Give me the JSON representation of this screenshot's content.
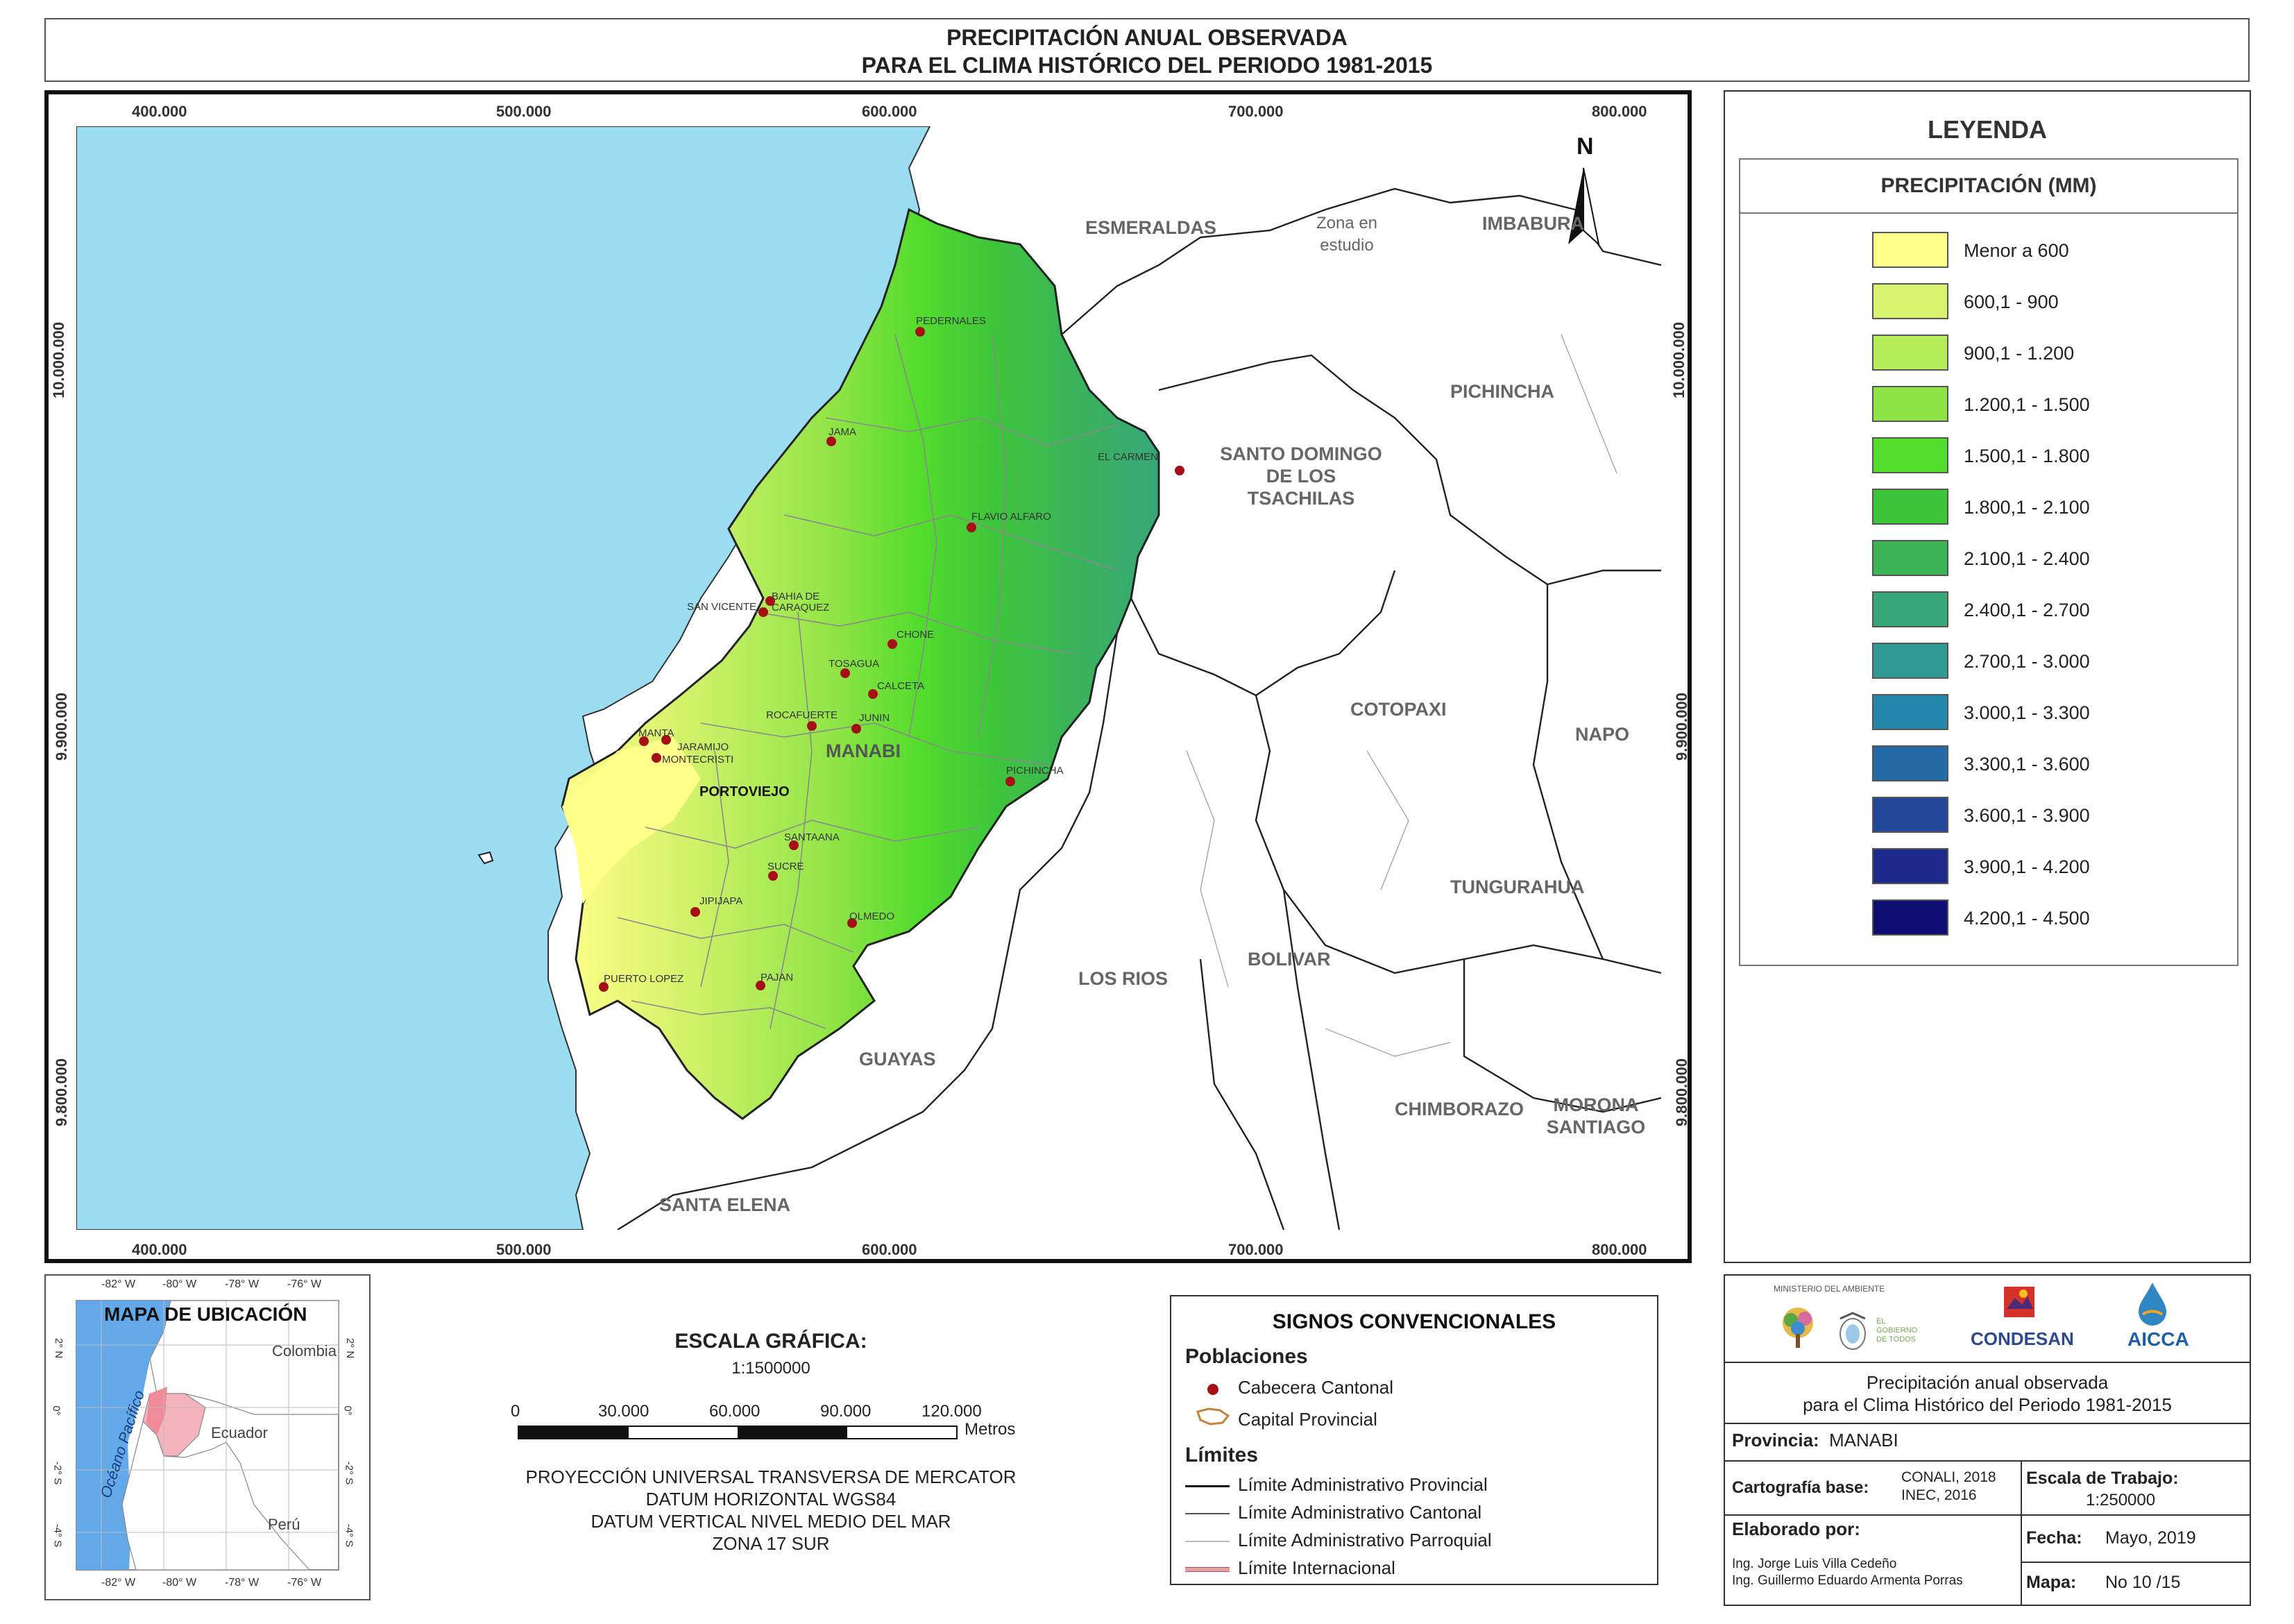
{
  "title": {
    "line1": "PRECIPITACIÓN ANUAL OBSERVADA",
    "line2": "PARA EL CLIMA HISTÓRICO DEL PERIODO 1981-2015"
  },
  "map": {
    "x_ticks": [
      "400.000",
      "500.000",
      "600.000",
      "700.000",
      "800.000"
    ],
    "y_ticks": [
      "10.000.000",
      "9.900.000",
      "9.800.000"
    ],
    "north_label": "N",
    "provinces": [
      "ESMERALDAS",
      "Zona en estudio",
      "IMBABURA",
      "PICHINCHA",
      "SANTO DOMINGO DE LOS TSACHILAS",
      "COTOPAXI",
      "NAPO",
      "TUNGURAHUA",
      "BOLIVAR",
      "LOS RIOS",
      "CHIMBORAZO",
      "MORONA SANTIAGO",
      "GUAYAS",
      "SANTA ELENA",
      "MANABI"
    ],
    "cities": [
      "PEDERNALES",
      "JAMA",
      "EL CARMEN",
      "FLAVIO ALFARO",
      "BAHIA DE CARAQUEZ",
      "SAN VICENTE",
      "CHONE",
      "TOSAGUA",
      "CALCETA",
      "JUNIN",
      "ROCAFUERTE",
      "MANTA",
      "JARAMIJO",
      "MONTECRISTI",
      "PORTOVIEJO",
      "PICHINCHA",
      "SANTAANA",
      "SUCRE",
      "JIPIJAPA",
      "OLMEDO",
      "PUERTO LOPEZ",
      "PAJAN"
    ],
    "colors": {
      "ocean": "#9bdcf0",
      "land": "#ffffff"
    }
  },
  "legend": {
    "title": "LEYENDA",
    "subtitle": "PRECIPITACIÓN (MM)",
    "classes": [
      {
        "label": "Menor a 600",
        "color": "#ffff8a"
      },
      {
        "label": "600,1 - 900",
        "color": "#daf36e"
      },
      {
        "label": "900,1 - 1.200",
        "color": "#b4ec5a"
      },
      {
        "label": "1.200,1 - 1.500",
        "color": "#8fe445"
      },
      {
        "label": "1.500,1 - 1.800",
        "color": "#52dc2c"
      },
      {
        "label": "1.800,1 - 2.100",
        "color": "#3ec63a"
      },
      {
        "label": "2.100,1 - 2.400",
        "color": "#3bb556"
      },
      {
        "label": "2.400,1 - 2.700",
        "color": "#37a777"
      },
      {
        "label": "2.700,1 - 3.000",
        "color": "#2f9a94"
      },
      {
        "label": "3.000,1 - 3.300",
        "color": "#2487a9"
      },
      {
        "label": "3.300,1 - 3.600",
        "color": "#246aa6"
      },
      {
        "label": "3.600,1 - 3.900",
        "color": "#23489a"
      },
      {
        "label": "3.900,1 - 4.200",
        "color": "#1d2a8a"
      },
      {
        "label": "4.200,1 - 4.500",
        "color": "#0e0d70"
      }
    ]
  },
  "inset": {
    "title": "MAPA DE UBICACIÓN",
    "top_ticks": [
      "-82° W",
      "-80° W",
      "-78° W",
      "-76° W"
    ],
    "bottom_ticks": [
      "-82° W",
      "-80° W",
      "-78° W",
      "-76° W"
    ],
    "side_ticks": [
      "2° N",
      "0°",
      "-2° S",
      "-4° S"
    ],
    "countries": [
      "Colombia",
      "Ecuador",
      "Perú"
    ],
    "ocean": "Océano Pacífico"
  },
  "scale": {
    "title": "ESCALA GRÁFICA:",
    "ratio": "1:1500000",
    "ticks": [
      "0",
      "30.000",
      "60.000",
      "90.000",
      "120.000"
    ],
    "unit": "Metros",
    "projection": [
      "PROYECCIÓN UNIVERSAL TRANSVERSA DE MERCATOR",
      "DATUM HORIZONTAL WGS84",
      "DATUM VERTICAL NIVEL MEDIO DEL MAR",
      "ZONA 17 SUR"
    ]
  },
  "signs": {
    "title": "SIGNOS CONVENCIONALES",
    "poblaciones": "Poblaciones",
    "cabecera": "Cabecera Cantonal",
    "capital": "Capital Provincial",
    "limites": "Límites",
    "lim_prov": "Límite Administrativo Provincial",
    "lim_cant": "Límite Administrativo Cantonal",
    "lim_parr": "Límite Administrativo Parroquial",
    "lim_int": "Límite Internacional"
  },
  "info": {
    "logo1": "MINISTERIO DEL AMBIENTE",
    "logo2": "EL GOBIERNO DE TODOS",
    "logo3": "CONDESAN",
    "logo4": "AICCA",
    "desc1": "Precipitación anual observada",
    "desc2": "para el Clima Histórico del Periodo 1981-2015",
    "prov_label": "Provincia:",
    "prov_value": "MANABI",
    "carto_label": "Cartografía base:",
    "carto_value1": "CONALI, 2018",
    "carto_value2": "INEC, 2016",
    "escala_label": "Escala de Trabajo:",
    "escala_value": "1:250000",
    "elab_label": "Elaborado por:",
    "elab_1": "Ing. Jorge Luis Villa Cedeño",
    "elab_2": "Ing. Guillermo Eduardo Armenta Porras",
    "fecha_label": "Fecha:",
    "fecha_value": "Mayo, 2019",
    "mapa_label": "Mapa:",
    "mapa_value": "No 10 /15"
  }
}
